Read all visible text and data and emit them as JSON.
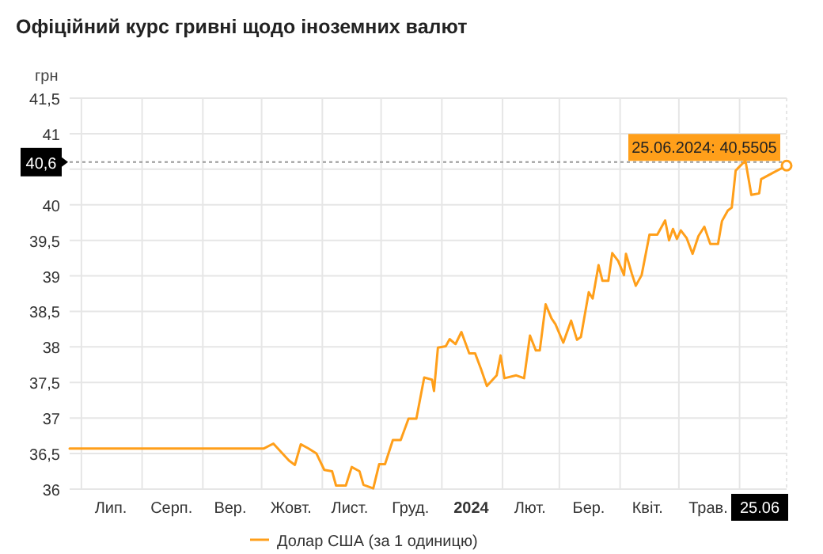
{
  "chart_data": {
    "type": "line",
    "title": "Офіційний курс гривні щодо іноземних валют",
    "ylabel": "грн",
    "x": [
      "2023-06-25",
      "2023-10-02",
      "2023-10-07",
      "2023-10-15",
      "2023-10-18",
      "2023-10-21",
      "2023-10-25",
      "2023-10-29",
      "2023-11-02",
      "2023-11-06",
      "2023-11-08",
      "2023-11-13",
      "2023-11-16",
      "2023-11-20",
      "2023-11-22",
      "2023-11-27",
      "2023-11-30",
      "2023-12-03",
      "2023-12-07",
      "2023-12-11",
      "2023-12-15",
      "2023-12-19",
      "2023-12-23",
      "2023-12-27",
      "2023-12-28",
      "2023-12-30",
      "2024-01-03",
      "2024-01-05",
      "2024-01-08",
      "2024-01-11",
      "2024-01-15",
      "2024-01-18",
      "2024-01-21",
      "2024-01-24",
      "2024-01-29",
      "2024-01-31",
      "2024-02-02",
      "2024-02-08",
      "2024-02-12",
      "2024-02-15",
      "2024-02-18",
      "2024-02-20",
      "2024-02-23",
      "2024-02-26",
      "2024-02-28",
      "2024-03-03",
      "2024-03-07",
      "2024-03-10",
      "2024-03-12",
      "2024-03-16",
      "2024-03-18",
      "2024-03-21",
      "2024-03-23",
      "2024-03-26",
      "2024-03-28",
      "2024-03-31",
      "2024-04-03",
      "2024-04-04",
      "2024-04-07",
      "2024-04-09",
      "2024-04-12",
      "2024-04-16",
      "2024-04-20",
      "2024-04-24",
      "2024-04-26",
      "2024-04-28",
      "2024-04-30",
      "2024-05-02",
      "2024-05-05",
      "2024-05-08",
      "2024-05-11",
      "2024-05-14",
      "2024-05-17",
      "2024-05-21",
      "2024-05-23",
      "2024-05-26",
      "2024-05-28",
      "2024-05-30",
      "2024-05-31",
      "2024-06-04",
      "2024-06-07",
      "2024-06-11",
      "2024-06-12",
      "2024-06-18",
      "2024-06-25"
    ],
    "series": [
      {
        "name": "Долар США (за 1 одиницю)",
        "color": "#ff9f1a",
        "values": [
          36.57,
          36.57,
          36.64,
          36.4,
          36.34,
          36.63,
          36.57,
          36.5,
          36.27,
          36.25,
          36.05,
          36.05,
          36.31,
          36.25,
          36.06,
          36.01,
          36.35,
          36.35,
          36.69,
          36.69,
          36.99,
          36.99,
          37.57,
          37.54,
          37.38,
          37.99,
          38.01,
          38.11,
          38.04,
          38.21,
          37.91,
          37.91,
          37.69,
          37.45,
          37.6,
          37.88,
          37.56,
          37.6,
          37.56,
          38.16,
          37.95,
          37.95,
          38.6,
          38.4,
          38.32,
          38.06,
          38.37,
          38.1,
          38.14,
          38.77,
          38.68,
          39.15,
          38.93,
          38.93,
          39.32,
          39.21,
          39.01,
          39.31,
          39.03,
          38.86,
          39.01,
          39.58,
          39.58,
          39.78,
          39.5,
          39.66,
          39.52,
          39.64,
          39.53,
          39.31,
          39.56,
          39.69,
          39.45,
          39.45,
          39.77,
          39.92,
          39.96,
          40.48,
          40.51,
          40.62,
          40.14,
          40.16,
          40.36,
          40.45,
          40.5505
        ]
      }
    ],
    "xlim": [
      "2023-06-25",
      "2024-06-25"
    ],
    "xticks": [
      {
        "value": "2023-07-16",
        "label": "Лип."
      },
      {
        "value": "2023-08-16",
        "label": "Серп."
      },
      {
        "value": "2023-09-15",
        "label": "Вер."
      },
      {
        "value": "2023-10-16",
        "label": "Жовт."
      },
      {
        "value": "2023-11-15",
        "label": "Лист."
      },
      {
        "value": "2023-12-16",
        "label": "Груд."
      },
      {
        "value": "2024-01-16",
        "label": "2024"
      },
      {
        "value": "2024-02-15",
        "label": "Лют."
      },
      {
        "value": "2024-03-16",
        "label": "Бер."
      },
      {
        "value": "2024-04-15",
        "label": "Квіт."
      },
      {
        "value": "2024-05-16",
        "label": "Трав."
      },
      {
        "value": "2024-06-25",
        "label": "25.06"
      }
    ],
    "ylim": [
      36,
      41.5
    ],
    "yticks": [
      {
        "value": 36,
        "label": "36"
      },
      {
        "value": 36.5,
        "label": "36,5"
      },
      {
        "value": 37,
        "label": "37"
      },
      {
        "value": 37.5,
        "label": "37,5"
      },
      {
        "value": 38,
        "label": "38"
      },
      {
        "value": 38.5,
        "label": "38,5"
      },
      {
        "value": 39,
        "label": "39"
      },
      {
        "value": 39.5,
        "label": "39,5"
      },
      {
        "value": 40,
        "label": "40"
      },
      {
        "value": 40.5,
        "label": null
      },
      {
        "value": 41,
        "label": "41"
      },
      {
        "value": 41.5,
        "label": "41,5"
      }
    ],
    "ref_lines": [
      {
        "axis": "y",
        "value": 40.6,
        "label": "40,6",
        "line_style": "dotted",
        "color": "#999999"
      }
    ],
    "annotations": [
      {
        "text": "25.06.2024: 40,5505",
        "x": "2024-06-25",
        "y": 40.5505
      }
    ],
    "grid": true,
    "legend": "bottom",
    "marker": "none",
    "line_style": "solid"
  }
}
